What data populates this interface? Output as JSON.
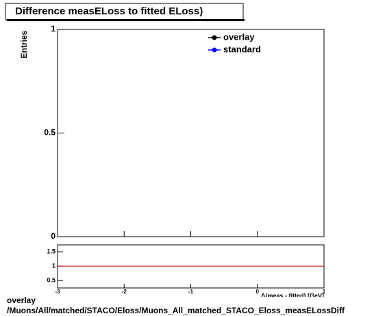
{
  "chart_data": [
    {
      "type": "histogram",
      "title": "Difference measELoss to fitted ELoss)",
      "y_label": "Entries",
      "xlim": [
        -3,
        1
      ],
      "ylim": [
        0,
        1
      ],
      "yticks": [
        0,
        0.5,
        1
      ],
      "series": [
        {
          "name": "overlay",
          "color": "#000000"
        },
        {
          "name": "standard",
          "color": "#0000ff"
        }
      ],
      "legend": "top-right"
    },
    {
      "type": "ratio",
      "x_label": "Δ(meas - fitted) [GeV]",
      "xlim": [
        -3,
        1
      ],
      "xticks": [
        -3,
        -2,
        -1,
        0,
        1
      ],
      "ylim": [
        0.24,
        1.74
      ],
      "yticks": [
        0.5,
        1,
        1.5
      ],
      "reference": 1,
      "reference_color": "#cc0000"
    }
  ],
  "footer": {
    "line1": "overlay",
    "line2": "/Muons/All/matched/STACO/Eloss/Muons_All_matched_STACO_Eloss_measELossDiff"
  }
}
